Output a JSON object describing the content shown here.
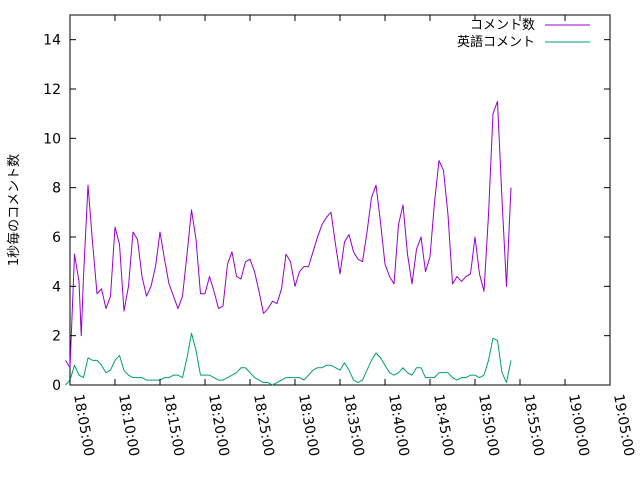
{
  "chart_data": {
    "type": "line",
    "ylabel": "1秒毎のコメント数",
    "ylim": [
      0,
      15
    ],
    "yticks": [
      0,
      2,
      4,
      6,
      8,
      10,
      12,
      14
    ],
    "xlim": [
      "18:05:00",
      "19:05:00"
    ],
    "xticks": [
      "18:05:00",
      "18:10:00",
      "18:15:00",
      "18:20:00",
      "18:25:00",
      "18:30:00",
      "18:35:00",
      "18:40:00",
      "18:45:00",
      "18:50:00",
      "18:55:00",
      "19:00:00",
      "19:05:00"
    ],
    "grid": false,
    "legend_position": "top-right",
    "series": [
      {
        "name": "コメント数",
        "color": "#9400d3",
        "points": [
          [
            "18:04:30",
            1.0
          ],
          [
            "18:05:00",
            0.7
          ],
          [
            "18:05:30",
            5.3
          ],
          [
            "18:06:00",
            4.2
          ],
          [
            "18:06:15",
            2.0
          ],
          [
            "18:06:30",
            4.4
          ],
          [
            "18:07:00",
            8.1
          ],
          [
            "18:07:30",
            5.8
          ],
          [
            "18:08:00",
            3.7
          ],
          [
            "18:08:30",
            3.9
          ],
          [
            "18:09:00",
            3.1
          ],
          [
            "18:09:30",
            3.6
          ],
          [
            "18:10:00",
            6.4
          ],
          [
            "18:10:30",
            5.7
          ],
          [
            "18:11:00",
            3.0
          ],
          [
            "18:11:30",
            4.0
          ],
          [
            "18:12:00",
            6.2
          ],
          [
            "18:12:30",
            5.9
          ],
          [
            "18:13:00",
            4.4
          ],
          [
            "18:13:30",
            3.6
          ],
          [
            "18:14:00",
            4.0
          ],
          [
            "18:14:30",
            4.8
          ],
          [
            "18:15:00",
            6.2
          ],
          [
            "18:15:30",
            5.1
          ],
          [
            "18:16:00",
            4.1
          ],
          [
            "18:16:30",
            3.6
          ],
          [
            "18:17:00",
            3.1
          ],
          [
            "18:17:30",
            3.6
          ],
          [
            "18:18:00",
            5.3
          ],
          [
            "18:18:30",
            7.1
          ],
          [
            "18:19:00",
            5.9
          ],
          [
            "18:19:30",
            3.7
          ],
          [
            "18:20:00",
            3.7
          ],
          [
            "18:20:30",
            4.4
          ],
          [
            "18:21:00",
            3.8
          ],
          [
            "18:21:30",
            3.1
          ],
          [
            "18:22:00",
            3.2
          ],
          [
            "18:22:30",
            4.9
          ],
          [
            "18:23:00",
            5.4
          ],
          [
            "18:23:30",
            4.4
          ],
          [
            "18:24:00",
            4.3
          ],
          [
            "18:24:30",
            5.0
          ],
          [
            "18:25:00",
            5.1
          ],
          [
            "18:25:30",
            4.6
          ],
          [
            "18:26:00",
            3.8
          ],
          [
            "18:26:30",
            2.9
          ],
          [
            "18:27:00",
            3.1
          ],
          [
            "18:27:30",
            3.4
          ],
          [
            "18:28:00",
            3.3
          ],
          [
            "18:28:30",
            3.9
          ],
          [
            "18:29:00",
            5.3
          ],
          [
            "18:29:30",
            5.0
          ],
          [
            "18:30:00",
            4.0
          ],
          [
            "18:30:30",
            4.6
          ],
          [
            "18:31:00",
            4.8
          ],
          [
            "18:31:30",
            4.8
          ],
          [
            "18:32:00",
            5.4
          ],
          [
            "18:32:30",
            6.0
          ],
          [
            "18:33:00",
            6.5
          ],
          [
            "18:33:30",
            6.8
          ],
          [
            "18:34:00",
            7.0
          ],
          [
            "18:34:30",
            5.7
          ],
          [
            "18:35:00",
            4.5
          ],
          [
            "18:35:30",
            5.8
          ],
          [
            "18:36:00",
            6.1
          ],
          [
            "18:36:30",
            5.4
          ],
          [
            "18:37:00",
            5.1
          ],
          [
            "18:37:30",
            5.0
          ],
          [
            "18:38:00",
            6.2
          ],
          [
            "18:38:30",
            7.6
          ],
          [
            "18:39:00",
            8.1
          ],
          [
            "18:39:30",
            6.6
          ],
          [
            "18:40:00",
            4.9
          ],
          [
            "18:40:30",
            4.4
          ],
          [
            "18:41:00",
            4.1
          ],
          [
            "18:41:30",
            6.5
          ],
          [
            "18:42:00",
            7.3
          ],
          [
            "18:42:30",
            5.3
          ],
          [
            "18:43:00",
            4.1
          ],
          [
            "18:43:30",
            5.5
          ],
          [
            "18:44:00",
            6.0
          ],
          [
            "18:44:30",
            4.6
          ],
          [
            "18:45:00",
            5.2
          ],
          [
            "18:45:30",
            7.4
          ],
          [
            "18:46:00",
            9.1
          ],
          [
            "18:46:30",
            8.7
          ],
          [
            "18:47:00",
            6.9
          ],
          [
            "18:47:30",
            4.1
          ],
          [
            "18:48:00",
            4.4
          ],
          [
            "18:48:30",
            4.2
          ],
          [
            "18:49:00",
            4.4
          ],
          [
            "18:49:30",
            4.5
          ],
          [
            "18:50:00",
            6.0
          ],
          [
            "18:50:30",
            4.5
          ],
          [
            "18:51:00",
            3.8
          ],
          [
            "18:51:30",
            6.9
          ],
          [
            "18:52:00",
            11.0
          ],
          [
            "18:52:30",
            11.5
          ],
          [
            "18:53:00",
            7.5
          ],
          [
            "18:53:30",
            4.0
          ],
          [
            "18:54:00",
            8.0
          ]
        ]
      },
      {
        "name": "英語コメント",
        "color": "#009e73",
        "points": [
          [
            "18:04:30",
            0.0
          ],
          [
            "18:05:00",
            0.2
          ],
          [
            "18:05:30",
            0.8
          ],
          [
            "18:06:00",
            0.4
          ],
          [
            "18:06:30",
            0.3
          ],
          [
            "18:07:00",
            1.1
          ],
          [
            "18:07:30",
            1.0
          ],
          [
            "18:08:00",
            1.0
          ],
          [
            "18:08:30",
            0.8
          ],
          [
            "18:09:00",
            0.5
          ],
          [
            "18:09:30",
            0.6
          ],
          [
            "18:10:00",
            1.0
          ],
          [
            "18:10:30",
            1.2
          ],
          [
            "18:11:00",
            0.6
          ],
          [
            "18:11:30",
            0.4
          ],
          [
            "18:12:00",
            0.3
          ],
          [
            "18:12:30",
            0.3
          ],
          [
            "18:13:00",
            0.3
          ],
          [
            "18:13:30",
            0.2
          ],
          [
            "18:14:00",
            0.2
          ],
          [
            "18:14:30",
            0.2
          ],
          [
            "18:15:00",
            0.2
          ],
          [
            "18:15:30",
            0.3
          ],
          [
            "18:16:00",
            0.3
          ],
          [
            "18:16:30",
            0.4
          ],
          [
            "18:17:00",
            0.4
          ],
          [
            "18:17:30",
            0.3
          ],
          [
            "18:18:00",
            1.1
          ],
          [
            "18:18:30",
            2.1
          ],
          [
            "18:19:00",
            1.4
          ],
          [
            "18:19:30",
            0.4
          ],
          [
            "18:20:00",
            0.4
          ],
          [
            "18:20:30",
            0.4
          ],
          [
            "18:21:00",
            0.3
          ],
          [
            "18:21:30",
            0.2
          ],
          [
            "18:22:00",
            0.2
          ],
          [
            "18:22:30",
            0.3
          ],
          [
            "18:23:00",
            0.4
          ],
          [
            "18:23:30",
            0.5
          ],
          [
            "18:24:00",
            0.7
          ],
          [
            "18:24:30",
            0.7
          ],
          [
            "18:25:00",
            0.5
          ],
          [
            "18:25:30",
            0.3
          ],
          [
            "18:26:00",
            0.2
          ],
          [
            "18:26:30",
            0.1
          ],
          [
            "18:27:00",
            0.1
          ],
          [
            "18:27:30",
            0.0
          ],
          [
            "18:28:00",
            0.1
          ],
          [
            "18:28:30",
            0.2
          ],
          [
            "18:29:00",
            0.3
          ],
          [
            "18:29:30",
            0.3
          ],
          [
            "18:30:00",
            0.3
          ],
          [
            "18:30:30",
            0.3
          ],
          [
            "18:31:00",
            0.2
          ],
          [
            "18:31:30",
            0.4
          ],
          [
            "18:32:00",
            0.6
          ],
          [
            "18:32:30",
            0.7
          ],
          [
            "18:33:00",
            0.7
          ],
          [
            "18:33:30",
            0.8
          ],
          [
            "18:34:00",
            0.8
          ],
          [
            "18:34:30",
            0.7
          ],
          [
            "18:35:00",
            0.6
          ],
          [
            "18:35:30",
            0.9
          ],
          [
            "18:36:00",
            0.6
          ],
          [
            "18:36:30",
            0.2
          ],
          [
            "18:37:00",
            0.1
          ],
          [
            "18:37:30",
            0.2
          ],
          [
            "18:38:00",
            0.6
          ],
          [
            "18:38:30",
            1.0
          ],
          [
            "18:39:00",
            1.3
          ],
          [
            "18:39:30",
            1.1
          ],
          [
            "18:40:00",
            0.8
          ],
          [
            "18:40:30",
            0.5
          ],
          [
            "18:41:00",
            0.4
          ],
          [
            "18:41:30",
            0.5
          ],
          [
            "18:42:00",
            0.7
          ],
          [
            "18:42:30",
            0.5
          ],
          [
            "18:43:00",
            0.4
          ],
          [
            "18:43:30",
            0.7
          ],
          [
            "18:44:00",
            0.7
          ],
          [
            "18:44:30",
            0.3
          ],
          [
            "18:45:00",
            0.3
          ],
          [
            "18:45:30",
            0.3
          ],
          [
            "18:46:00",
            0.5
          ],
          [
            "18:46:30",
            0.5
          ],
          [
            "18:47:00",
            0.5
          ],
          [
            "18:47:30",
            0.3
          ],
          [
            "18:48:00",
            0.2
          ],
          [
            "18:48:30",
            0.3
          ],
          [
            "18:49:00",
            0.3
          ],
          [
            "18:49:30",
            0.4
          ],
          [
            "18:50:00",
            0.4
          ],
          [
            "18:50:30",
            0.3
          ],
          [
            "18:51:00",
            0.4
          ],
          [
            "18:51:30",
            1.0
          ],
          [
            "18:52:00",
            1.9
          ],
          [
            "18:52:30",
            1.8
          ],
          [
            "18:53:00",
            0.5
          ],
          [
            "18:53:30",
            0.1
          ],
          [
            "18:54:00",
            1.0
          ]
        ]
      }
    ]
  }
}
